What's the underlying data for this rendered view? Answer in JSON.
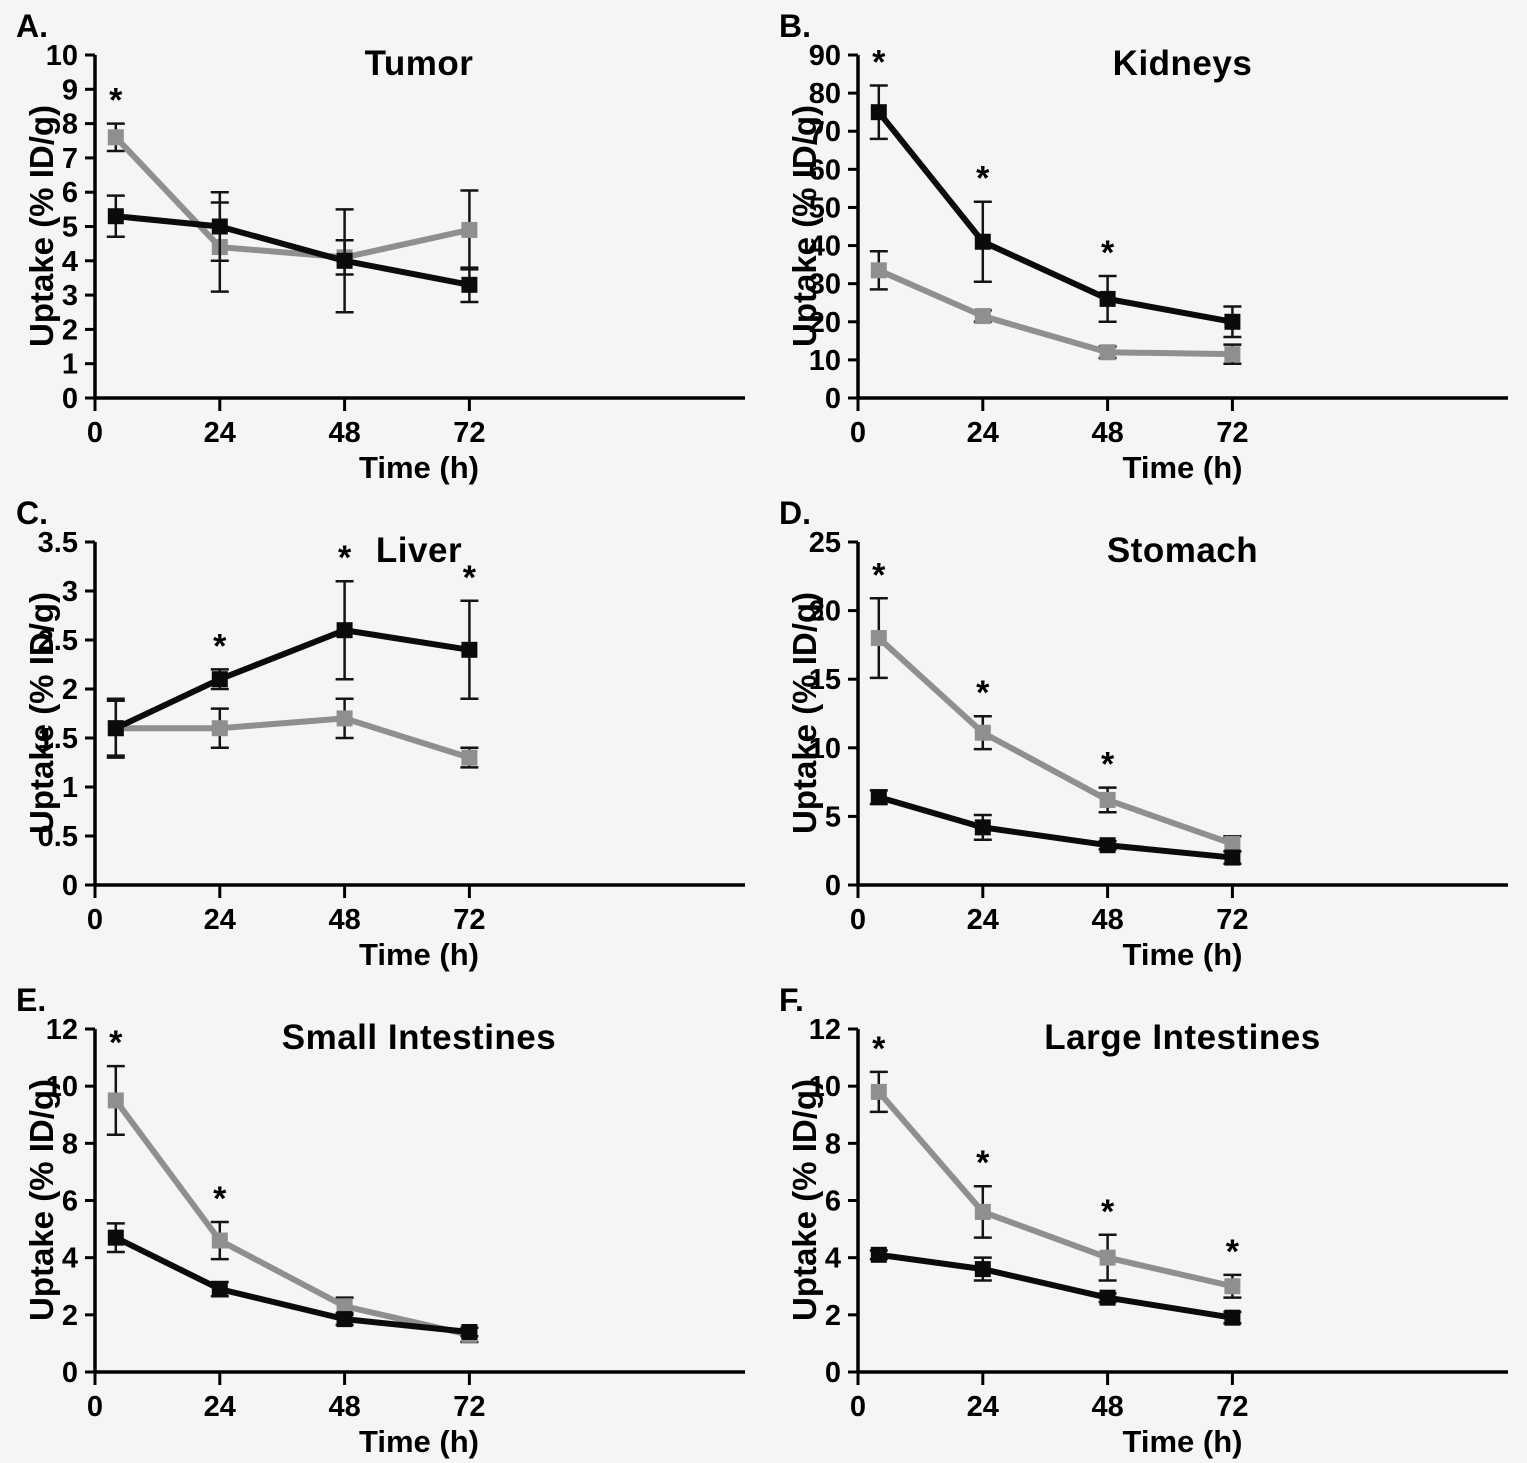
{
  "figure": {
    "background": "#f6f5f3",
    "text_color": "#000000",
    "axis_color": "#000000",
    "error_bar_color": "#141414",
    "legend": "none",
    "grid": false
  },
  "chart_data": [
    {
      "type": "line",
      "panel_label": "A.",
      "title": "Tumor",
      "xlabel": "Time (h)",
      "ylabel": "Uptake (% ID/g)",
      "x": [
        4,
        24,
        48,
        72
      ],
      "x_ticks": [
        0,
        24,
        48,
        72
      ],
      "xlim": [
        0,
        125
      ],
      "ylim": [
        0,
        10
      ],
      "y_tick_step": 1,
      "series": [
        {
          "name": "gray",
          "color": "#8f8f8f",
          "values": [
            7.6,
            4.4,
            4.1,
            4.9
          ],
          "errors": [
            0.4,
            1.3,
            0.5,
            1.15
          ],
          "significant": [
            true,
            false,
            false,
            false
          ]
        },
        {
          "name": "black",
          "color": "#0b0b0b",
          "values": [
            5.3,
            5.0,
            4.0,
            3.3
          ],
          "errors": [
            0.6,
            1.0,
            1.5,
            0.5
          ],
          "significant": [
            false,
            false,
            false,
            false
          ]
        }
      ]
    },
    {
      "type": "line",
      "panel_label": "B.",
      "title": "Kidneys",
      "xlabel": "Time (h)",
      "ylabel": "Uptake (% ID/g)",
      "x": [
        4,
        24,
        48,
        72
      ],
      "x_ticks": [
        0,
        24,
        48,
        72
      ],
      "xlim": [
        0,
        125
      ],
      "ylim": [
        0,
        90
      ],
      "y_tick_step": 10,
      "series": [
        {
          "name": "gray",
          "color": "#8f8f8f",
          "values": [
            33.5,
            21.5,
            12,
            11.5
          ],
          "errors": [
            5,
            1.5,
            1.5,
            2.5
          ],
          "significant": [
            false,
            false,
            false,
            false
          ]
        },
        {
          "name": "black",
          "color": "#0b0b0b",
          "values": [
            75,
            41,
            26,
            20
          ],
          "errors": [
            7,
            10.5,
            6,
            4
          ],
          "significant": [
            true,
            true,
            true,
            false
          ]
        }
      ]
    },
    {
      "type": "line",
      "panel_label": "C.",
      "title": "Liver",
      "xlabel": "Time (h)",
      "ylabel": "Uptake (% ID/g)",
      "x": [
        4,
        24,
        48,
        72
      ],
      "x_ticks": [
        0,
        24,
        48,
        72
      ],
      "xlim": [
        0,
        125
      ],
      "ylim": [
        0,
        3.5
      ],
      "y_tick_step": 0.5,
      "series": [
        {
          "name": "gray",
          "color": "#8f8f8f",
          "values": [
            1.6,
            1.6,
            1.7,
            1.3
          ],
          "errors": [
            0.3,
            0.2,
            0.2,
            0.1
          ],
          "significant": [
            false,
            false,
            false,
            false
          ]
        },
        {
          "name": "black",
          "color": "#0b0b0b",
          "values": [
            1.6,
            2.1,
            2.6,
            2.4
          ],
          "errors": [
            0.28,
            0.1,
            0.5,
            0.5
          ],
          "significant": [
            false,
            true,
            true,
            true
          ]
        }
      ]
    },
    {
      "type": "line",
      "panel_label": "D.",
      "title": "Stomach",
      "xlabel": "Time (h)",
      "ylabel": "Uptake (% ID/g)",
      "x": [
        4,
        24,
        48,
        72
      ],
      "x_ticks": [
        0,
        24,
        48,
        72
      ],
      "xlim": [
        0,
        125
      ],
      "ylim": [
        0,
        25
      ],
      "y_tick_step": 5,
      "series": [
        {
          "name": "gray",
          "color": "#8f8f8f",
          "values": [
            18,
            11.1,
            6.2,
            3.0
          ],
          "errors": [
            2.9,
            1.2,
            0.9,
            0.55
          ],
          "significant": [
            true,
            true,
            true,
            false
          ]
        },
        {
          "name": "black",
          "color": "#0b0b0b",
          "values": [
            6.4,
            4.2,
            2.9,
            2.0
          ],
          "errors": [
            0.5,
            0.9,
            0.3,
            0.45
          ],
          "significant": [
            false,
            false,
            false,
            false
          ]
        }
      ]
    },
    {
      "type": "line",
      "panel_label": "E.",
      "title": "Small Intestines",
      "xlabel": "Time (h)",
      "ylabel": "Uptake (% ID/g)",
      "x": [
        4,
        24,
        48,
        72
      ],
      "x_ticks": [
        0,
        24,
        48,
        72
      ],
      "xlim": [
        0,
        125
      ],
      "ylim": [
        0,
        12
      ],
      "y_tick_step": 2,
      "series": [
        {
          "name": "gray",
          "color": "#8f8f8f",
          "values": [
            9.5,
            4.6,
            2.3,
            1.3
          ],
          "errors": [
            1.2,
            0.65,
            0.3,
            0.25
          ],
          "significant": [
            true,
            true,
            false,
            false
          ]
        },
        {
          "name": "black",
          "color": "#0b0b0b",
          "values": [
            4.7,
            2.9,
            1.85,
            1.4
          ],
          "errors": [
            0.5,
            0.25,
            0.2,
            0.15
          ],
          "significant": [
            false,
            false,
            false,
            false
          ]
        }
      ]
    },
    {
      "type": "line",
      "panel_label": "F.",
      "title": "Large Intestines",
      "xlabel": "Time (h)",
      "ylabel": "Uptake (% ID/g)",
      "x": [
        4,
        24,
        48,
        72
      ],
      "x_ticks": [
        0,
        24,
        48,
        72
      ],
      "xlim": [
        0,
        125
      ],
      "ylim": [
        0,
        12
      ],
      "y_tick_step": 2,
      "series": [
        {
          "name": "gray",
          "color": "#8f8f8f",
          "values": [
            9.8,
            5.6,
            4.0,
            3.0
          ],
          "errors": [
            0.7,
            0.9,
            0.8,
            0.4
          ],
          "significant": [
            true,
            true,
            true,
            true
          ]
        },
        {
          "name": "black",
          "color": "#0b0b0b",
          "values": [
            4.1,
            3.6,
            2.6,
            1.9
          ],
          "errors": [
            0.15,
            0.4,
            0.15,
            0.2
          ],
          "significant": [
            false,
            false,
            false,
            false
          ]
        }
      ]
    }
  ]
}
